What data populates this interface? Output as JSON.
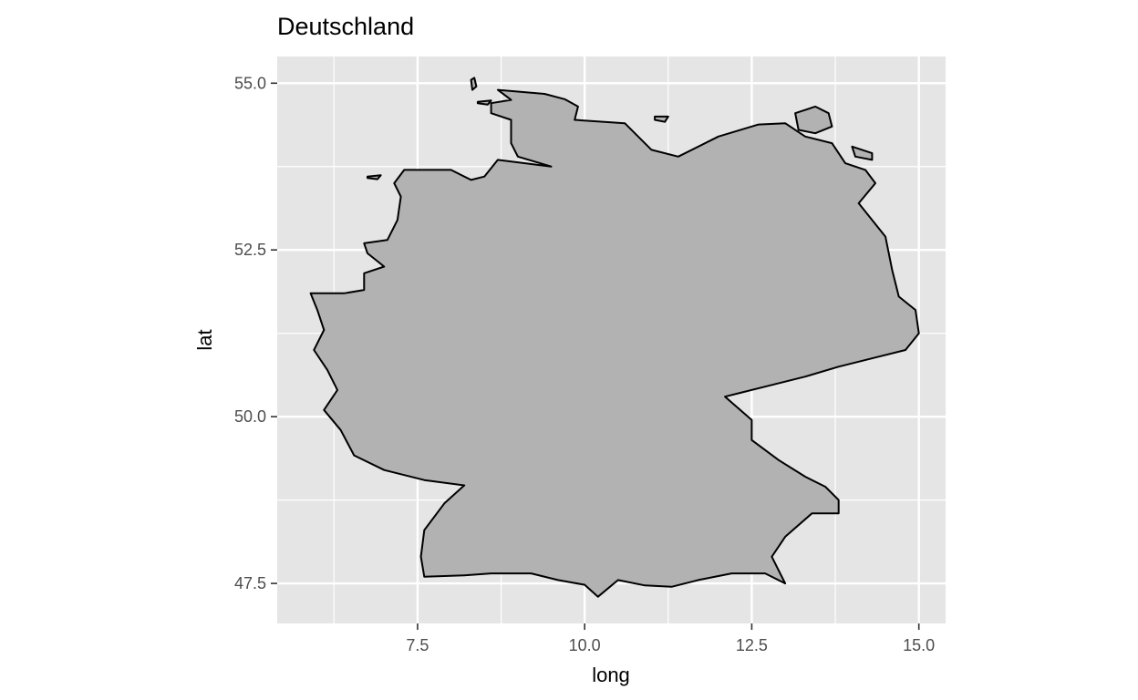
{
  "chart_data": {
    "type": "map",
    "title": "Deutschland",
    "xlabel": "long",
    "ylabel": "lat",
    "xlim": [
      5.4,
      15.4
    ],
    "ylim": [
      46.9,
      55.4
    ],
    "x_breaks": [
      7.5,
      10.0,
      12.5,
      15.0
    ],
    "x_tick_labels": [
      "7.5",
      "10.0",
      "12.5",
      "15.0"
    ],
    "y_breaks": [
      47.5,
      50.0,
      52.5,
      55.0
    ],
    "y_tick_labels": [
      "47.5",
      "50.0",
      "52.5",
      "55.0"
    ],
    "grid": true,
    "fill_color": "#b2b2b2",
    "border_color": "#000000",
    "panel_background": "#e5e5e5",
    "grid_color": "#ffffff",
    "regions": [
      {
        "region": "mainland",
        "coords": [
          [
            8.7,
            54.9
          ],
          [
            9.4,
            54.84
          ],
          [
            9.7,
            54.76
          ],
          [
            9.9,
            54.65
          ],
          [
            9.85,
            54.45
          ],
          [
            10.6,
            54.4
          ],
          [
            11.0,
            54.0
          ],
          [
            11.4,
            53.9
          ],
          [
            12.0,
            54.2
          ],
          [
            12.6,
            54.38
          ],
          [
            13.0,
            54.4
          ],
          [
            13.3,
            54.2
          ],
          [
            13.7,
            54.1
          ],
          [
            13.9,
            53.8
          ],
          [
            14.2,
            53.7
          ],
          [
            14.35,
            53.5
          ],
          [
            14.1,
            53.2
          ],
          [
            14.5,
            52.7
          ],
          [
            14.6,
            52.2
          ],
          [
            14.7,
            51.8
          ],
          [
            14.95,
            51.6
          ],
          [
            15.0,
            51.25
          ],
          [
            14.8,
            51.0
          ],
          [
            14.4,
            50.9
          ],
          [
            13.8,
            50.75
          ],
          [
            13.3,
            50.6
          ],
          [
            12.7,
            50.45
          ],
          [
            12.3,
            50.35
          ],
          [
            12.1,
            50.3
          ],
          [
            12.5,
            49.95
          ],
          [
            12.5,
            49.65
          ],
          [
            12.9,
            49.35
          ],
          [
            13.3,
            49.1
          ],
          [
            13.6,
            48.95
          ],
          [
            13.8,
            48.75
          ],
          [
            13.8,
            48.55
          ],
          [
            13.4,
            48.55
          ],
          [
            13.0,
            48.2
          ],
          [
            12.8,
            47.9
          ],
          [
            13.0,
            47.5
          ],
          [
            12.7,
            47.65
          ],
          [
            12.2,
            47.65
          ],
          [
            11.7,
            47.55
          ],
          [
            11.3,
            47.45
          ],
          [
            10.9,
            47.47
          ],
          [
            10.5,
            47.55
          ],
          [
            10.2,
            47.3
          ],
          [
            10.0,
            47.48
          ],
          [
            9.6,
            47.55
          ],
          [
            9.2,
            47.65
          ],
          [
            8.6,
            47.65
          ],
          [
            8.2,
            47.62
          ],
          [
            7.6,
            47.6
          ],
          [
            7.55,
            47.9
          ],
          [
            7.6,
            48.3
          ],
          [
            7.9,
            48.7
          ],
          [
            8.2,
            48.97
          ],
          [
            7.6,
            49.05
          ],
          [
            7.0,
            49.2
          ],
          [
            6.55,
            49.42
          ],
          [
            6.35,
            49.8
          ],
          [
            6.1,
            50.1
          ],
          [
            6.3,
            50.4
          ],
          [
            6.15,
            50.7
          ],
          [
            5.95,
            51.0
          ],
          [
            6.1,
            51.3
          ],
          [
            6.0,
            51.6
          ],
          [
            5.9,
            51.85
          ],
          [
            6.4,
            51.85
          ],
          [
            6.7,
            51.9
          ],
          [
            6.7,
            52.15
          ],
          [
            7.0,
            52.25
          ],
          [
            6.75,
            52.45
          ],
          [
            6.7,
            52.6
          ],
          [
            7.05,
            52.65
          ],
          [
            7.2,
            52.95
          ],
          [
            7.25,
            53.3
          ],
          [
            7.15,
            53.5
          ],
          [
            7.3,
            53.7
          ],
          [
            8.0,
            53.7
          ],
          [
            8.3,
            53.55
          ],
          [
            8.5,
            53.6
          ],
          [
            8.7,
            53.85
          ],
          [
            9.5,
            53.75
          ],
          [
            9.0,
            53.9
          ],
          [
            8.9,
            54.1
          ],
          [
            8.9,
            54.45
          ],
          [
            8.6,
            54.55
          ],
          [
            8.6,
            54.7
          ],
          [
            8.9,
            54.75
          ],
          [
            8.7,
            54.9
          ]
        ]
      },
      {
        "region": "ruegen",
        "coords": [
          [
            13.15,
            54.55
          ],
          [
            13.45,
            54.65
          ],
          [
            13.65,
            54.55
          ],
          [
            13.7,
            54.35
          ],
          [
            13.45,
            54.25
          ],
          [
            13.2,
            54.3
          ],
          [
            13.15,
            54.55
          ]
        ]
      },
      {
        "region": "usedom",
        "coords": [
          [
            14.0,
            54.05
          ],
          [
            14.3,
            53.95
          ],
          [
            14.3,
            53.85
          ],
          [
            14.05,
            53.9
          ],
          [
            14.0,
            54.05
          ]
        ]
      },
      {
        "region": "fehmarn",
        "coords": [
          [
            11.05,
            54.5
          ],
          [
            11.25,
            54.5
          ],
          [
            11.2,
            54.42
          ],
          [
            11.05,
            54.45
          ],
          [
            11.05,
            54.5
          ]
        ]
      },
      {
        "region": "sylt",
        "coords": [
          [
            8.3,
            55.05
          ],
          [
            8.35,
            55.08
          ],
          [
            8.38,
            54.95
          ],
          [
            8.32,
            54.9
          ],
          [
            8.3,
            55.05
          ]
        ]
      },
      {
        "region": "foehr",
        "coords": [
          [
            8.4,
            54.72
          ],
          [
            8.6,
            54.74
          ],
          [
            8.55,
            54.68
          ],
          [
            8.4,
            54.7
          ],
          [
            8.4,
            54.72
          ]
        ]
      },
      {
        "region": "borkum",
        "coords": [
          [
            6.75,
            53.6
          ],
          [
            6.95,
            53.62
          ],
          [
            6.9,
            53.56
          ],
          [
            6.75,
            53.58
          ],
          [
            6.75,
            53.6
          ]
        ]
      }
    ]
  }
}
